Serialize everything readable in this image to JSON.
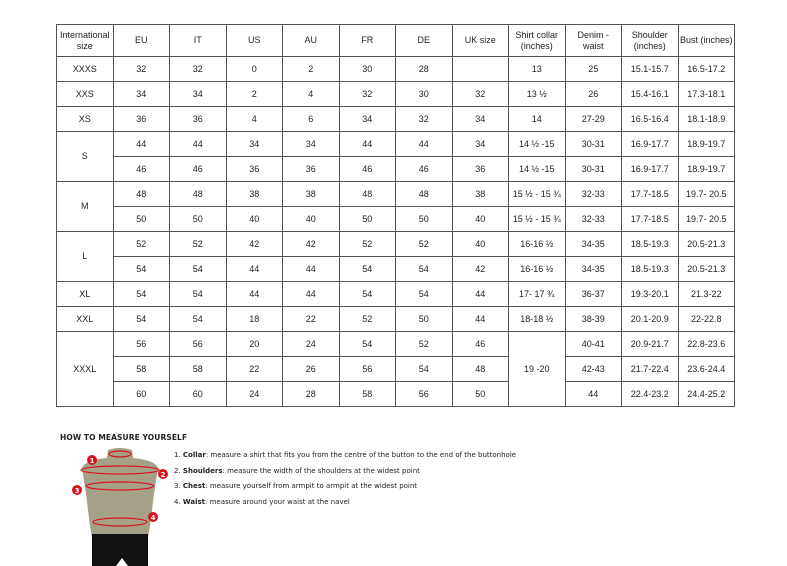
{
  "table": {
    "headers": [
      "International size",
      "EU",
      "IT",
      "US",
      "AU",
      "FR",
      "DE",
      "UK size",
      "Shirt collar (inches)",
      "Denim - waist",
      "Shoulder (inches)",
      "Bust (inches)"
    ],
    "rows": [
      {
        "size": "XXXS",
        "cells": [
          "32",
          "32",
          "0",
          "2",
          "30",
          "28",
          "",
          "13",
          "25",
          "15.1-15.7",
          "16.5-17.2"
        ]
      },
      {
        "size": "XXS",
        "cells": [
          "34",
          "34",
          "2",
          "4",
          "32",
          "30",
          "32",
          "13 ½",
          "26",
          "15.4-16.1",
          "17.3-18.1"
        ]
      },
      {
        "size": "XS",
        "cells": [
          "36",
          "36",
          "4",
          "6",
          "34",
          "32",
          "34",
          "14",
          "27-29",
          "16.5-16.4",
          "18.1-18.9"
        ]
      },
      {
        "size": "S",
        "cells": [
          "44",
          "44",
          "34",
          "34",
          "44",
          "44",
          "34",
          "14 ½ -15",
          "30-31",
          "16.9-17.7",
          "18.9-19.7"
        ]
      },
      {
        "size": "",
        "cells": [
          "46",
          "46",
          "36",
          "36",
          "46",
          "46",
          "36",
          "14 ½ -15",
          "30-31",
          "16.9-17.7",
          "18.9-19.7"
        ]
      },
      {
        "size": "M",
        "cells": [
          "48",
          "48",
          "38",
          "38",
          "48",
          "48",
          "38",
          "15 ½ - 15 ¾",
          "32-33",
          "17.7-18.5",
          "19.7- 20.5"
        ]
      },
      {
        "size": "",
        "cells": [
          "50",
          "50",
          "40",
          "40",
          "50",
          "50",
          "40",
          "15 ½ - 15 ¾",
          "32-33",
          "17.7-18.5",
          "19.7- 20.5"
        ]
      },
      {
        "size": "L",
        "cells": [
          "52",
          "52",
          "42",
          "42",
          "52",
          "52",
          "40",
          "16-16 ½",
          "34-35",
          "18.5-19.3",
          "20.5-21.3"
        ]
      },
      {
        "size": "",
        "cells": [
          "54",
          "54",
          "44",
          "44",
          "54",
          "54",
          "42",
          "16-16 ½",
          "34-35",
          "18.5-19.3",
          "20.5-21.3"
        ]
      },
      {
        "size": "XL",
        "cells": [
          "54",
          "54",
          "44",
          "44",
          "54",
          "54",
          "44",
          "17- 17 ¾",
          "36-37",
          "19.3-20.1",
          "21.3-22"
        ]
      },
      {
        "size": "XXL",
        "cells": [
          "54",
          "54",
          "18",
          "22",
          "52",
          "50",
          "44",
          "18-18 ½",
          "38-39",
          "20.1-20.9",
          "22-22.8"
        ]
      },
      {
        "size": "XXXL",
        "cells": [
          "56",
          "56",
          "20",
          "24",
          "54",
          "52",
          "46",
          "19 -20",
          "40-41",
          "20.9-21.7",
          "22.8-23.6"
        ]
      },
      {
        "size": "",
        "cells": [
          "58",
          "58",
          "22",
          "26",
          "56",
          "54",
          "48",
          "",
          "42-43",
          "21.7-22.4",
          "23.6-24.4"
        ]
      },
      {
        "size": "",
        "cells": [
          "60",
          "60",
          "24",
          "28",
          "58",
          "56",
          "50",
          "",
          "44",
          "22.4-23.2",
          "24.4-25.2"
        ]
      }
    ]
  },
  "guide": {
    "title": "HOW TO MEASURE YOURSELF",
    "items": [
      {
        "num": "1.",
        "term": "Collar",
        "text": ": measure a shirt that fits you from the centre of the button to the end of the buttonhole"
      },
      {
        "num": "2.",
        "term": "Shoulders",
        "text": ": measure the width of the shoulders at the widest point"
      },
      {
        "num": "3.",
        "term": "Chest",
        "text": ": measure yourself from armpit to armpit at the widest point"
      },
      {
        "num": "4.",
        "term": "Waist",
        "text": ": measure around your waist at the navel"
      }
    ],
    "markers": [
      "1",
      "2",
      "3",
      "4"
    ],
    "accent": "#d7141d"
  }
}
